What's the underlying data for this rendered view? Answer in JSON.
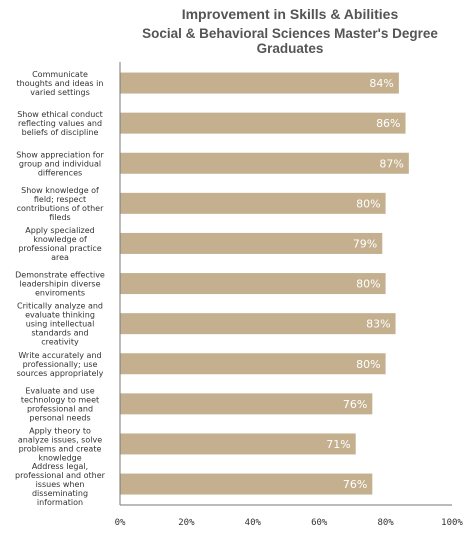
{
  "chart_data": {
    "type": "bar",
    "orientation": "horizontal",
    "title": "Improvement in Skills & Abilities",
    "subtitle": "Social & Behavioral Sciences Master's Degree Graduates",
    "categories": [
      [
        "Communicate",
        "thoughts and ideas in",
        "varied settings"
      ],
      [
        "Show ethical conduct",
        "reflecting values and",
        "beliefs of discipline"
      ],
      [
        "Show appreciation for",
        "group and individual",
        "differences"
      ],
      [
        "Show knowledge of",
        "field; respect",
        "contributions of other",
        "fileds"
      ],
      [
        "Apply specialized",
        "knowledge of",
        "professional practice",
        "area"
      ],
      [
        "Demonstrate effective",
        "leadershipin diverse",
        "enviroments"
      ],
      [
        "Critically analyze and",
        "evaluate thinking",
        "using intellectual",
        "standards and",
        "creativity"
      ],
      [
        "Write accurately and",
        "professionally; use",
        "sources appropriately"
      ],
      [
        "Evaluate and use",
        "technology to meet",
        "professional and",
        "personal needs"
      ],
      [
        "Apply theory to",
        "analyze issues, solve",
        "problems and create",
        "knowledge"
      ],
      [
        "Address legal,",
        "professional and other",
        "issues when",
        "disseminating",
        "information"
      ]
    ],
    "values": [
      84,
      86,
      87,
      80,
      79,
      80,
      83,
      80,
      76,
      71,
      76
    ],
    "value_labels": [
      "84%",
      "86%",
      "87%",
      "80%",
      "79%",
      "80%",
      "83%",
      "80%",
      "76%",
      "71%",
      "76%"
    ],
    "xlim": [
      0,
      100
    ],
    "ticks": [
      0,
      20,
      40,
      60,
      80,
      100
    ],
    "tick_labels": [
      "0%",
      "20%",
      "40%",
      "60%",
      "80%",
      "100%"
    ],
    "bar_color": "#c4b08f",
    "grid": false
  }
}
